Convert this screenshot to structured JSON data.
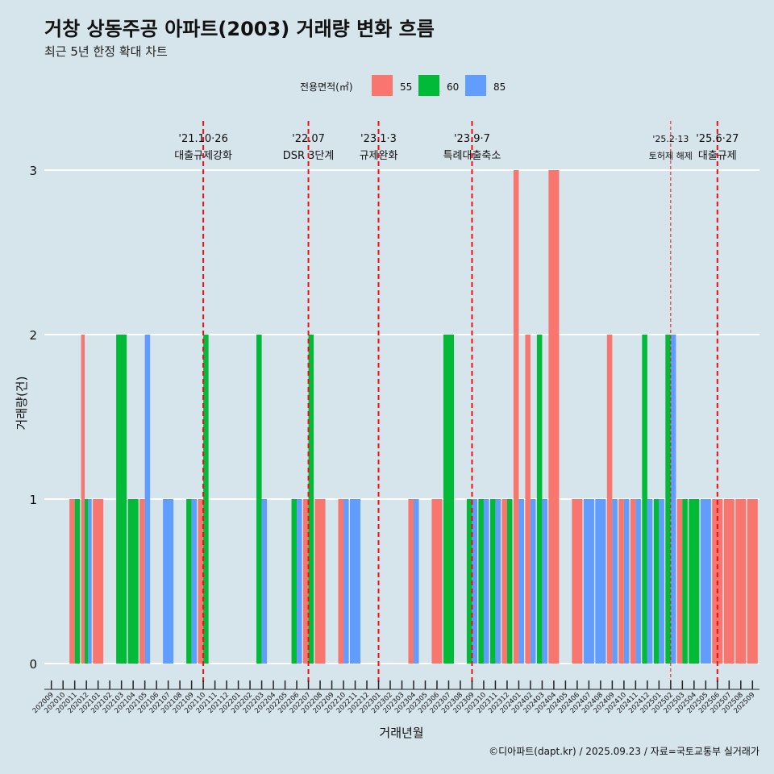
{
  "chart_data": {
    "type": "bar",
    "title": "거창 상동주공 아파트(2003) 거래량 변화 흐름",
    "subtitle": "최근 5년 한정 확대 차트",
    "xlabel": "거래년월",
    "ylabel": "거래량(건)",
    "caption": "©디아파트(dapt.kr) / 2025.09.23 / 자료=국토교통부 실거래가",
    "legend": {
      "title": "전용면적(㎡)",
      "position": "top",
      "entries": [
        {
          "name": "55",
          "color": "#F8766D"
        },
        {
          "name": "60",
          "color": "#00BA38"
        },
        {
          "name": "85",
          "color": "#619CFF"
        }
      ]
    },
    "ylim": [
      0,
      3
    ],
    "yticks": [
      0,
      1,
      2,
      3
    ],
    "grid": "horizontal",
    "months": [
      "202009",
      "202010",
      "202011",
      "202012",
      "202101",
      "202102",
      "202103",
      "202104",
      "202105",
      "202106",
      "202107",
      "202108",
      "202109",
      "202110",
      "202111",
      "202112",
      "202201",
      "202202",
      "202203",
      "202204",
      "202205",
      "202206",
      "202207",
      "202208",
      "202209",
      "202210",
      "202211",
      "202212",
      "202301",
      "202302",
      "202303",
      "202304",
      "202305",
      "202306",
      "202307",
      "202308",
      "202309",
      "202310",
      "202311",
      "202312",
      "202401",
      "202402",
      "202403",
      "202404",
      "202405",
      "202406",
      "202407",
      "202408",
      "202409",
      "202410",
      "202411",
      "202412",
      "202501",
      "202502",
      "202503",
      "202504",
      "202505",
      "202506",
      "202507",
      "202508",
      "202509"
    ],
    "series": [
      {
        "name": "55",
        "color": "#F8766D",
        "points": [
          [
            "202011",
            1
          ],
          [
            "202012",
            2
          ],
          [
            "202101",
            1
          ],
          [
            "202105",
            1
          ],
          [
            "202110",
            1
          ],
          [
            "202207",
            1
          ],
          [
            "202208",
            1
          ],
          [
            "202210",
            1
          ],
          [
            "202304",
            1
          ],
          [
            "202306",
            1
          ],
          [
            "202312",
            1
          ],
          [
            "202401",
            3
          ],
          [
            "202402",
            2
          ],
          [
            "202404",
            3
          ],
          [
            "202406",
            1
          ],
          [
            "202409",
            2
          ],
          [
            "202410",
            1
          ],
          [
            "202411",
            1
          ],
          [
            "202503",
            1
          ],
          [
            "202506",
            1
          ],
          [
            "202507",
            1
          ],
          [
            "202508",
            1
          ],
          [
            "202509",
            1
          ]
        ]
      },
      {
        "name": "60",
        "color": "#00BA38",
        "points": [
          [
            "202011",
            1
          ],
          [
            "202012",
            1
          ],
          [
            "202103",
            2
          ],
          [
            "202104",
            1
          ],
          [
            "202109",
            1
          ],
          [
            "202110",
            2
          ],
          [
            "202203",
            2
          ],
          [
            "202206",
            1
          ],
          [
            "202207",
            2
          ],
          [
            "202307",
            2
          ],
          [
            "202309",
            1
          ],
          [
            "202310",
            1
          ],
          [
            "202311",
            1
          ],
          [
            "202312",
            1
          ],
          [
            "202403",
            2
          ],
          [
            "202412",
            2
          ],
          [
            "202501",
            1
          ],
          [
            "202502",
            2
          ],
          [
            "202503",
            1
          ],
          [
            "202504",
            1
          ]
        ]
      },
      {
        "name": "85",
        "color": "#619CFF",
        "points": [
          [
            "202012",
            1
          ],
          [
            "202105",
            2
          ],
          [
            "202107",
            1
          ],
          [
            "202109",
            1
          ],
          [
            "202203",
            1
          ],
          [
            "202206",
            1
          ],
          [
            "202210",
            1
          ],
          [
            "202211",
            1
          ],
          [
            "202304",
            1
          ],
          [
            "202309",
            1
          ],
          [
            "202310",
            1
          ],
          [
            "202311",
            1
          ],
          [
            "202401",
            1
          ],
          [
            "202402",
            1
          ],
          [
            "202403",
            1
          ],
          [
            "202407",
            1
          ],
          [
            "202408",
            1
          ],
          [
            "202409",
            1
          ],
          [
            "202410",
            1
          ],
          [
            "202411",
            1
          ],
          [
            "202412",
            1
          ],
          [
            "202501",
            1
          ],
          [
            "202502",
            2
          ],
          [
            "202505",
            1
          ]
        ]
      }
    ],
    "annotations": [
      {
        "month": "202110",
        "date": "'21.10·26",
        "label": "대출규제강화",
        "style": "dashed"
      },
      {
        "month": "202207",
        "date": "'22.07",
        "label": "DSR 3단계",
        "style": "dashed"
      },
      {
        "month": "202301",
        "date": "'23.1·3",
        "label": "규제완화",
        "style": "dashed"
      },
      {
        "month": "202309",
        "date": "'23.9·7",
        "label": "특례대출축소",
        "style": "dashed"
      },
      {
        "month": "202502",
        "date": "'25.2·13",
        "label": "토허제 해제",
        "style": "thin"
      },
      {
        "month": "202506",
        "date": "'25.6·27",
        "label": "대출규제",
        "style": "dashed"
      }
    ]
  }
}
